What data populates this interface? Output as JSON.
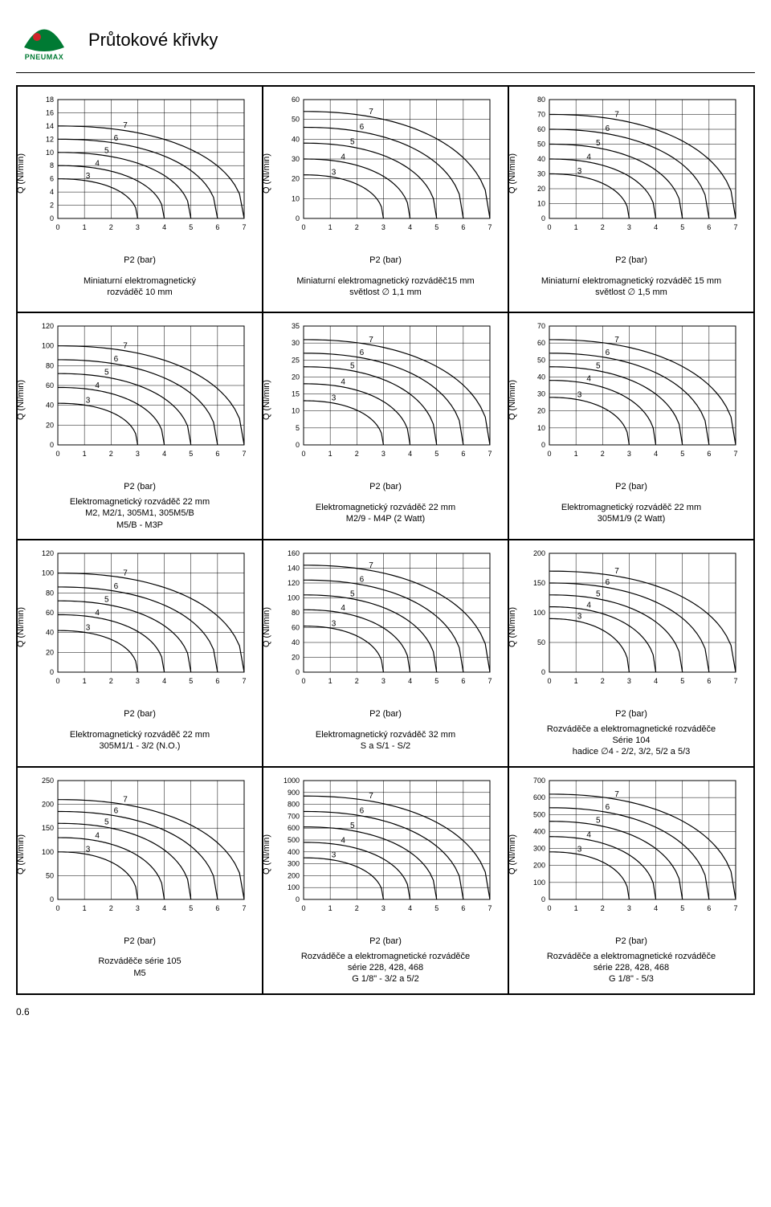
{
  "page": {
    "title": "Průtokové křivky",
    "logo_text": "PNEUMAX",
    "logo_colors": {
      "green": "#007a33",
      "red": "#d1232a"
    },
    "page_number": "0.6"
  },
  "axis_common": {
    "xlabel": "P2 (bar)",
    "ylabel": "Q (Nl/min)",
    "xlim": [
      0,
      7
    ],
    "xtick_step": 1,
    "grid_color": "#000000",
    "grid_width": 0.5,
    "line_color": "#000000",
    "line_width": 1.2,
    "background": "#ffffff",
    "tick_fontsize": 9,
    "label_fontsize": 11,
    "curve_labels": [
      "3",
      "4",
      "5",
      "6",
      "7"
    ]
  },
  "charts": [
    {
      "id": "r1c1",
      "caption": "Miniaturní elektromagnetický\nrozváděč 10 mm",
      "ylim": [
        0,
        18
      ],
      "ytick_step": 2,
      "starts": [
        6,
        8,
        10,
        12,
        14
      ]
    },
    {
      "id": "r1c2",
      "caption": "Miniaturní elektromagnetický rozváděč15 mm\nsvětlost ∅ 1,1 mm",
      "ylim": [
        0,
        60
      ],
      "ytick_step": 10,
      "starts": [
        22,
        30,
        38,
        46,
        54
      ]
    },
    {
      "id": "r1c3",
      "caption": "Miniaturní elektromagnetický rozváděč 15 mm\nsvětlost ∅ 1,5 mm",
      "ylim": [
        0,
        80
      ],
      "ytick_step": 10,
      "starts": [
        30,
        40,
        50,
        60,
        70
      ]
    },
    {
      "id": "r2c1",
      "caption": "Elektromagnetický rozváděč 22 mm\nM2, M2/1, 305M1, 305M5/B\nM5/B - M3P",
      "ylim": [
        0,
        120
      ],
      "ytick_step": 20,
      "starts": [
        42,
        58,
        72,
        86,
        100
      ]
    },
    {
      "id": "r2c2",
      "caption": "Elektromagnetický rozváděč 22 mm\nM2/9 - M4P (2 Watt)",
      "ylim": [
        0,
        35
      ],
      "ytick_step": 5,
      "starts": [
        13,
        18,
        23,
        27,
        31
      ]
    },
    {
      "id": "r2c3",
      "caption": "Elektromagnetický rozváděč 22 mm\n305M1/9 (2 Watt)",
      "ylim": [
        0,
        70
      ],
      "ytick_step": 10,
      "starts": [
        28,
        38,
        46,
        54,
        62
      ]
    },
    {
      "id": "r3c1",
      "caption": "Elektromagnetický rozváděč 22 mm\n305M1/1 - 3/2 (N.O.)",
      "ylim": [
        0,
        120
      ],
      "ytick_step": 20,
      "starts": [
        42,
        58,
        72,
        86,
        100
      ]
    },
    {
      "id": "r3c2",
      "caption": "Elektromagnetický rozváděč 32 mm\nS a S/1 - S/2",
      "ylim": [
        0,
        160
      ],
      "ytick_step": 20,
      "starts": [
        62,
        84,
        104,
        124,
        144
      ]
    },
    {
      "id": "r3c3",
      "caption": "Rozváděče a elektromagnetické rozváděče\nSérie 104\nhadice ∅4 - 2/2, 3/2, 5/2 a 5/3",
      "ylim": [
        0,
        200
      ],
      "ytick_step": 50,
      "starts": [
        90,
        110,
        130,
        150,
        170
      ]
    },
    {
      "id": "r4c1",
      "caption": "Rozváděče série 105\nM5",
      "ylim": [
        0,
        250
      ],
      "ytick_step": 50,
      "starts": [
        100,
        130,
        160,
        185,
        210
      ]
    },
    {
      "id": "r4c2",
      "caption": "Rozváděče a elektromagnetické rozváděče\nsérie 228, 428, 468\nG 1/8\" - 3/2 a 5/2",
      "ylim": [
        0,
        1000
      ],
      "ytick_step": 100,
      "starts": [
        350,
        480,
        610,
        740,
        870
      ]
    },
    {
      "id": "r4c3",
      "caption": "Rozváděče a elektromagnetické rozváděče\nsérie 228, 428, 468\nG 1/8\" - 5/3",
      "ylim": [
        0,
        700
      ],
      "ytick_step": 100,
      "starts": [
        280,
        370,
        460,
        540,
        620
      ]
    }
  ]
}
